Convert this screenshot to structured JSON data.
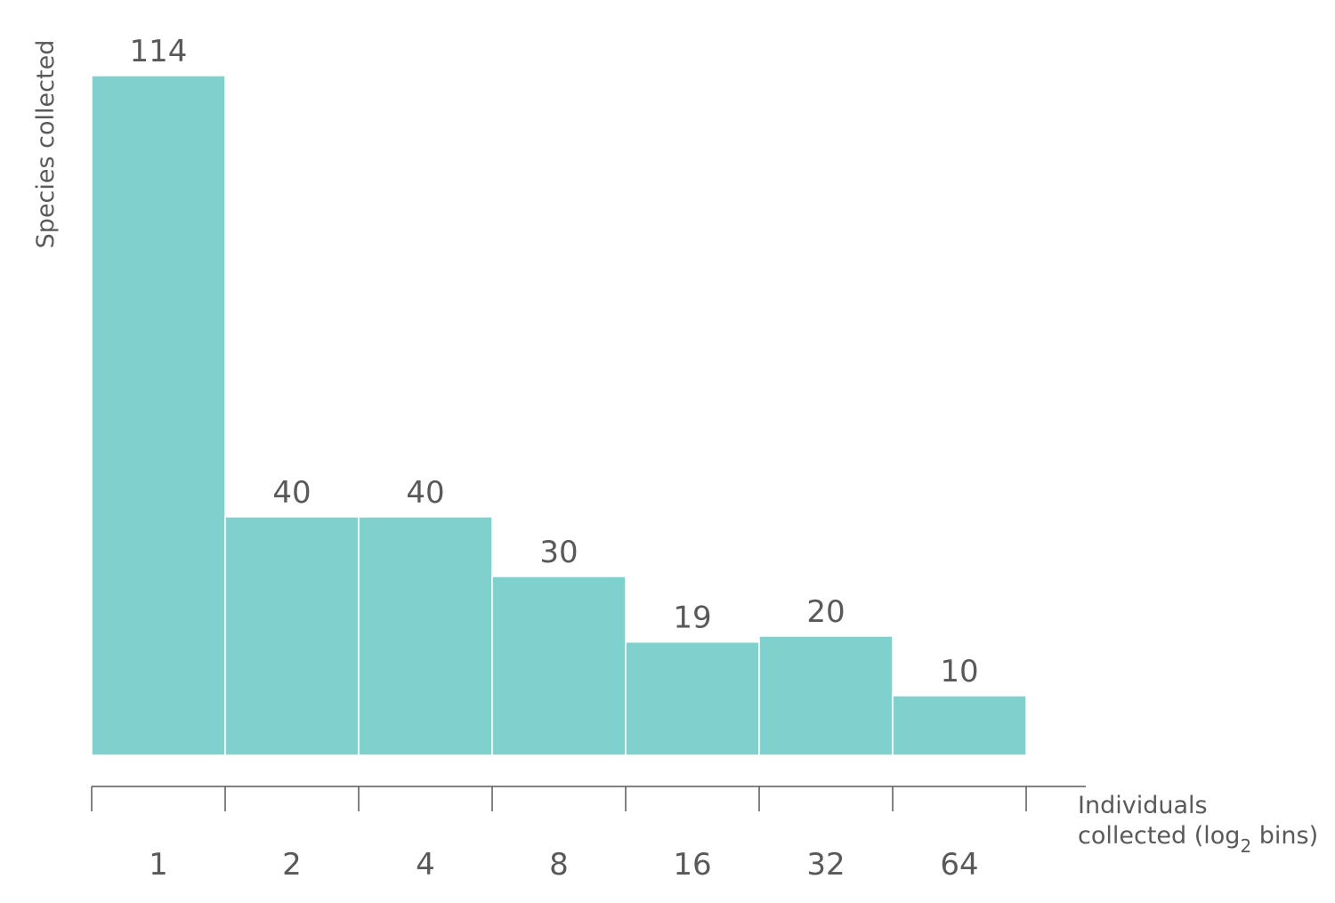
{
  "chart_data": {
    "type": "bar",
    "categories": [
      "1",
      "2",
      "4",
      "8",
      "16",
      "32",
      "64"
    ],
    "values": [
      114,
      40,
      40,
      30,
      19,
      20,
      10
    ],
    "data_labels": [
      "114",
      "40",
      "40",
      "30",
      "19",
      "20",
      "10"
    ],
    "ylabel": "Species collected",
    "xlabel_line1": "Individuals",
    "xlabel_line2_pre": "collected (log",
    "xlabel_line2_sub": "2",
    "xlabel_line2_post": " bins)",
    "ylim": [
      0,
      114
    ],
    "grid": false,
    "legend": "none",
    "bar_color": "#7fd1ce",
    "text_color": "#595959"
  }
}
